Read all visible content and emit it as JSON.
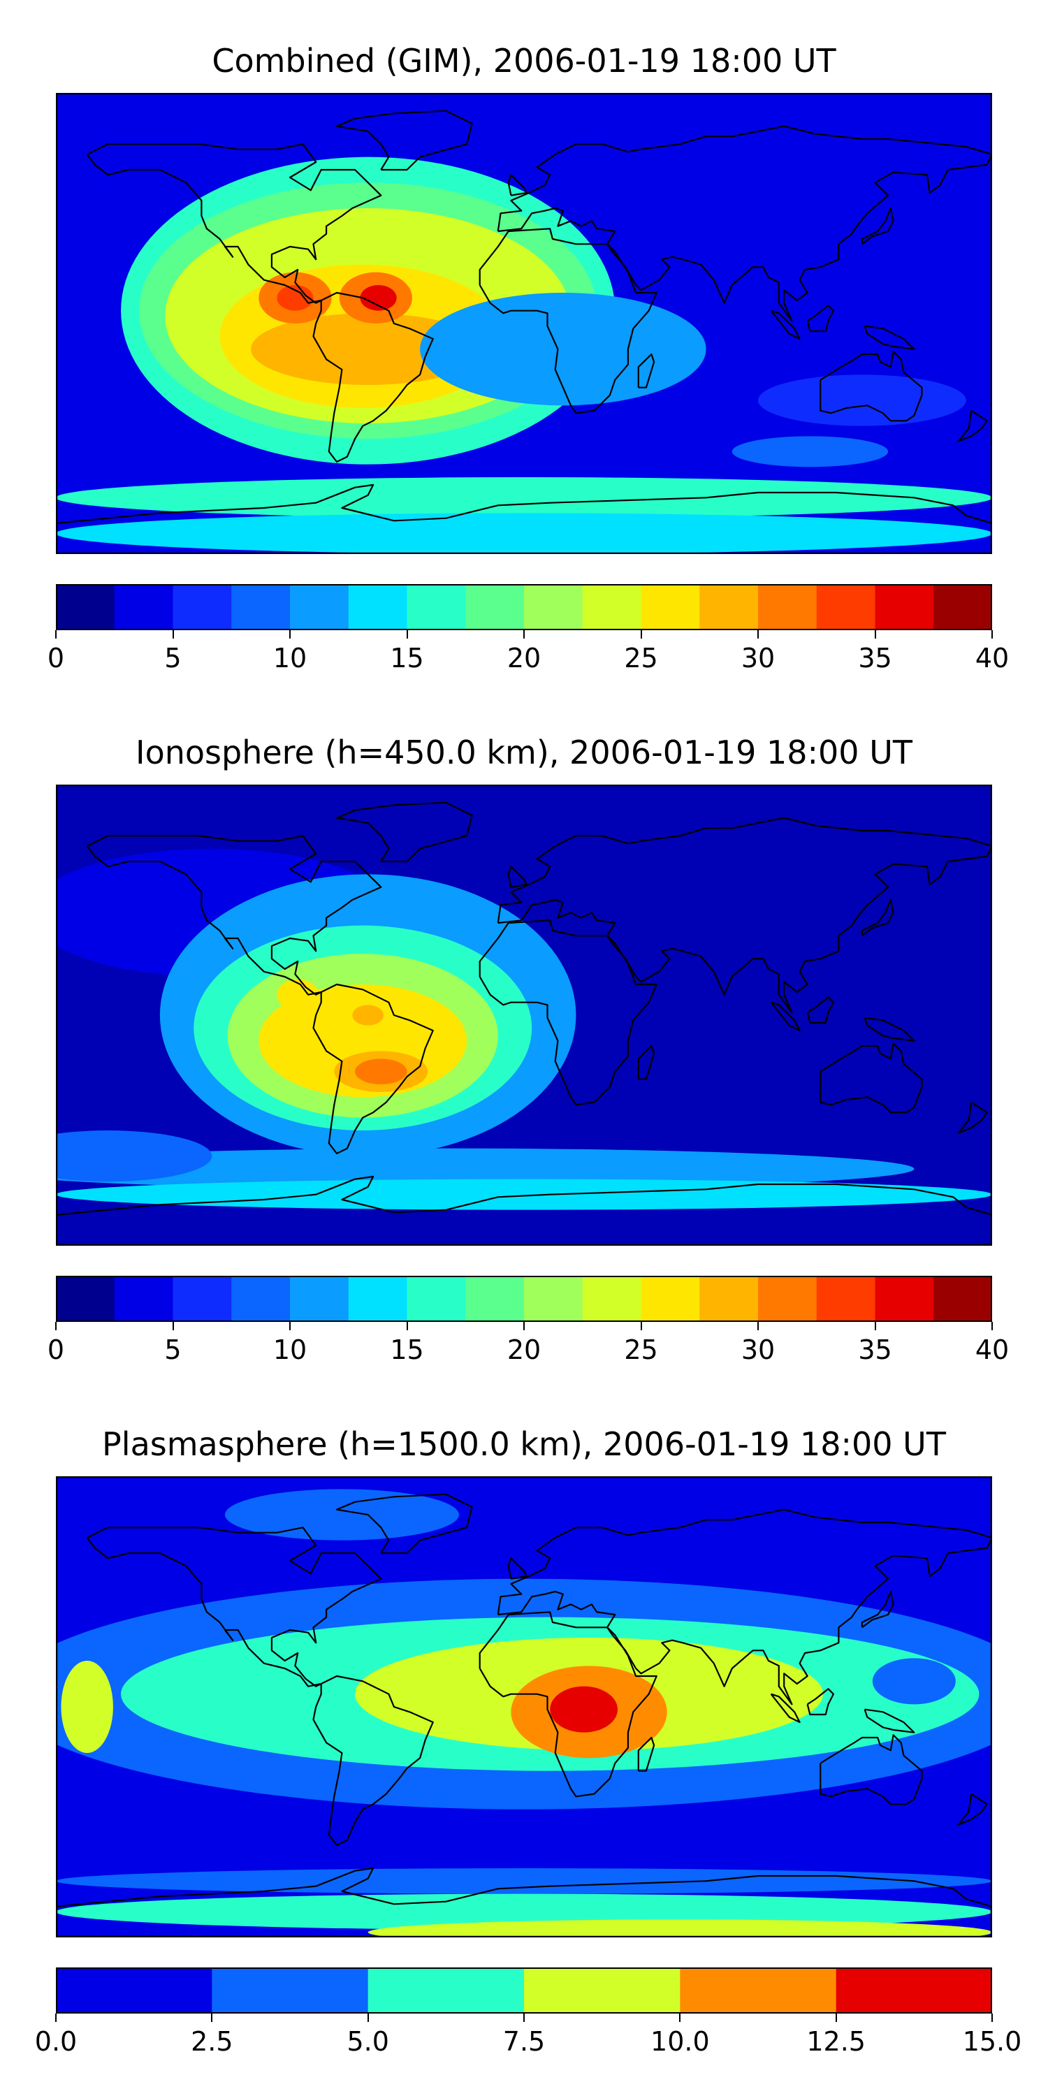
{
  "panels": [
    {
      "title": "Combined (GIM), 2006-01-19 18:00 UT",
      "colorbar": {
        "colors": [
          "#00008f",
          "#0000e6",
          "#0f2cff",
          "#0a66ff",
          "#0a9cff",
          "#00e1ff",
          "#28ffc8",
          "#5aff8e",
          "#a0ff5a",
          "#d2ff28",
          "#ffe600",
          "#ffb400",
          "#ff7800",
          "#ff3c00",
          "#e60000",
          "#9b0000"
        ],
        "ticks": [
          "0",
          "5",
          "10",
          "15",
          "20",
          "25",
          "30",
          "35",
          "40"
        ]
      },
      "map": {
        "background": "#0000e6",
        "blobs": [
          {
            "lon": -60,
            "lat": 5,
            "rx": 95,
            "ry": 60,
            "c": "#28ffc8"
          },
          {
            "lon": -60,
            "lat": 5,
            "rx": 88,
            "ry": 50,
            "c": "#5aff8e"
          },
          {
            "lon": -60,
            "lat": 3,
            "rx": 78,
            "ry": 42,
            "c": "#d2ff28"
          },
          {
            "lon": -62,
            "lat": -5,
            "rx": 55,
            "ry": 28,
            "c": "#ffe600"
          },
          {
            "lon": -60,
            "lat": -10,
            "rx": 45,
            "ry": 14,
            "c": "#ffb400"
          },
          {
            "lon": -88,
            "lat": 10,
            "rx": 14,
            "ry": 10,
            "c": "#ff7800"
          },
          {
            "lon": -88,
            "lat": 10,
            "rx": 7,
            "ry": 5,
            "c": "#ff3c00"
          },
          {
            "lon": -57,
            "lat": 10,
            "rx": 14,
            "ry": 10,
            "c": "#ff7800"
          },
          {
            "lon": -56,
            "lat": 10,
            "rx": 7,
            "ry": 5,
            "c": "#e60000"
          },
          {
            "lon": 15,
            "lat": -10,
            "rx": 55,
            "ry": 22,
            "c": "#0a9cff"
          },
          {
            "lon": 130,
            "lat": -30,
            "rx": 40,
            "ry": 10,
            "c": "#0f2cff"
          },
          {
            "lon": 0,
            "lat": -68,
            "rx": 180,
            "ry": 8,
            "c": "#28ffc8"
          },
          {
            "lon": 0,
            "lat": -82,
            "rx": 180,
            "ry": 8,
            "c": "#00e1ff"
          },
          {
            "lon": 110,
            "lat": -50,
            "rx": 30,
            "ry": 6,
            "c": "#0a66ff"
          }
        ]
      }
    },
    {
      "title": "Ionosphere  (h=450.0 km), 2006-01-19 18:00 UT",
      "colorbar": {
        "colors": [
          "#00008f",
          "#0000e6",
          "#0f2cff",
          "#0a66ff",
          "#0a9cff",
          "#00e1ff",
          "#28ffc8",
          "#5aff8e",
          "#a0ff5a",
          "#d2ff28",
          "#ffe600",
          "#ffb400",
          "#ff7800",
          "#ff3c00",
          "#e60000",
          "#9b0000"
        ],
        "ticks": [
          "0",
          "5",
          "10",
          "15",
          "20",
          "25",
          "30",
          "35",
          "40"
        ]
      },
      "map": {
        "background": "#0000b4",
        "blobs": [
          {
            "lon": -120,
            "lat": 40,
            "rx": 70,
            "ry": 25,
            "c": "#0000e6"
          },
          {
            "lon": -60,
            "lat": 0,
            "rx": 80,
            "ry": 55,
            "c": "#0a9cff"
          },
          {
            "lon": -62,
            "lat": -5,
            "rx": 65,
            "ry": 40,
            "c": "#28ffc8"
          },
          {
            "lon": -62,
            "lat": -8,
            "rx": 52,
            "ry": 32,
            "c": "#a0ff5a"
          },
          {
            "lon": -62,
            "lat": -10,
            "rx": 40,
            "ry": 22,
            "c": "#ffe600"
          },
          {
            "lon": -55,
            "lat": -22,
            "rx": 18,
            "ry": 8,
            "c": "#ffb400"
          },
          {
            "lon": -55,
            "lat": -22,
            "rx": 10,
            "ry": 5,
            "c": "#ff7800"
          },
          {
            "lon": -87,
            "lat": 8,
            "rx": 8,
            "ry": 6,
            "c": "#ffe600"
          },
          {
            "lon": -60,
            "lat": 0,
            "rx": 6,
            "ry": 4,
            "c": "#ffb400"
          },
          {
            "lon": -30,
            "lat": -60,
            "rx": 180,
            "ry": 8,
            "c": "#0a9cff"
          },
          {
            "lon": 0,
            "lat": -70,
            "rx": 180,
            "ry": 6,
            "c": "#00e1ff"
          },
          {
            "lon": -160,
            "lat": -55,
            "rx": 40,
            "ry": 10,
            "c": "#0a66ff"
          }
        ]
      }
    },
    {
      "title": "Plasmasphere (h=1500.0 km), 2006-01-19 18:00 UT",
      "colorbar": {
        "colors": [
          "#0000e6",
          "#0a66ff",
          "#28ffc8",
          "#d2ff28",
          "#ff8c00",
          "#e60000"
        ],
        "ticks": [
          "0.0",
          "2.5",
          "5.0",
          "7.5",
          "10.0",
          "12.5",
          "15.0"
        ]
      },
      "map": {
        "background": "#0000e6",
        "blobs": [
          {
            "lon": 0,
            "lat": 5,
            "rx": 200,
            "ry": 45,
            "c": "#0a66ff"
          },
          {
            "lon": -70,
            "lat": 75,
            "rx": 45,
            "ry": 10,
            "c": "#0a66ff"
          },
          {
            "lon": 10,
            "lat": 5,
            "rx": 165,
            "ry": 30,
            "c": "#28ffc8"
          },
          {
            "lon": 25,
            "lat": 5,
            "rx": 90,
            "ry": 22,
            "c": "#d2ff28"
          },
          {
            "lon": -168,
            "lat": 0,
            "rx": 10,
            "ry": 18,
            "c": "#d2ff28"
          },
          {
            "lon": 25,
            "lat": -2,
            "rx": 30,
            "ry": 18,
            "c": "#ff8c00"
          },
          {
            "lon": 23,
            "lat": -1,
            "rx": 13,
            "ry": 9,
            "c": "#e60000"
          },
          {
            "lon": 150,
            "lat": 10,
            "rx": 16,
            "ry": 9,
            "c": "#0a66ff"
          },
          {
            "lon": 0,
            "lat": -68,
            "rx": 180,
            "ry": 5,
            "c": "#0a66ff"
          },
          {
            "lon": 0,
            "lat": -80,
            "rx": 180,
            "ry": 7,
            "c": "#28ffc8"
          },
          {
            "lon": 60,
            "lat": -88,
            "rx": 120,
            "ry": 5,
            "c": "#d2ff28"
          }
        ]
      }
    }
  ]
}
